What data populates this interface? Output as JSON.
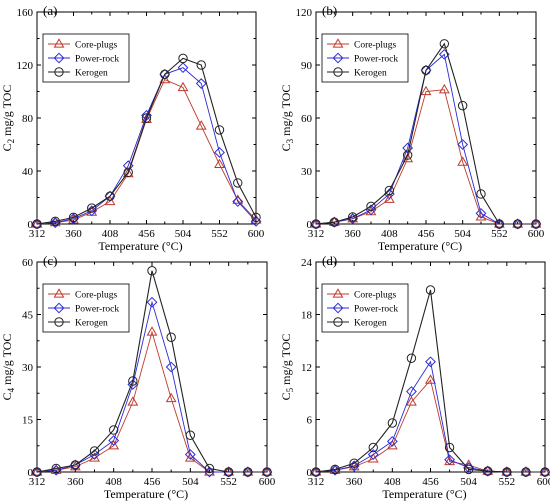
{
  "chart_data": [
    {
      "type": "line",
      "panel_label": "(a)",
      "ylabel_sym": "C",
      "ylabel_sub": "2",
      "ylabel_unit": " mg/g TOC",
      "xlabel": "Temperature (°C)",
      "xlim": [
        312,
        600
      ],
      "ylim": [
        0,
        160
      ],
      "xticks": [
        312,
        360,
        408,
        456,
        504,
        552,
        600
      ],
      "yticks": [
        0,
        40,
        80,
        120,
        160
      ],
      "legend_position": "top-left",
      "series": [
        {
          "name": "Core-plugs",
          "color": "#c0392b",
          "marker": "triangle",
          "x": [
            312,
            336,
            360,
            384,
            408,
            432,
            456,
            480,
            504,
            528,
            552,
            576,
            600
          ],
          "y": [
            0,
            1,
            3,
            9,
            17,
            38,
            79,
            109,
            103,
            74,
            45,
            18,
            3
          ]
        },
        {
          "name": "Power-rock",
          "color": "#2b2bd6",
          "marker": "diamond",
          "x": [
            312,
            336,
            360,
            384,
            408,
            432,
            456,
            480,
            504,
            528,
            552,
            576,
            600
          ],
          "y": [
            0,
            1,
            4,
            10,
            21,
            44,
            82,
            113,
            118,
            106,
            54,
            17,
            2
          ]
        },
        {
          "name": "Kerogen",
          "color": "#222222",
          "marker": "circle",
          "x": [
            312,
            336,
            360,
            384,
            408,
            432,
            456,
            480,
            504,
            528,
            552,
            576,
            600
          ],
          "y": [
            0,
            2,
            5,
            12,
            21,
            39,
            80,
            113,
            125,
            120,
            71,
            31,
            5
          ]
        }
      ]
    },
    {
      "type": "line",
      "panel_label": "(b)",
      "ylabel_sym": "C",
      "ylabel_sub": "3",
      "ylabel_unit": " mg/g TOC",
      "xlabel": "Temperature (°C)",
      "xlim": [
        312,
        600
      ],
      "ylim": [
        0,
        120
      ],
      "xticks": [
        312,
        360,
        408,
        456,
        504,
        552,
        600
      ],
      "yticks": [
        0,
        30,
        60,
        90,
        120
      ],
      "legend_position": "top-left",
      "series": [
        {
          "name": "Core-plugs",
          "color": "#c0392b",
          "marker": "triangle",
          "x": [
            312,
            336,
            360,
            384,
            408,
            432,
            456,
            480,
            504,
            528,
            552,
            576,
            600
          ],
          "y": [
            0,
            1,
            3,
            7,
            14,
            37,
            75,
            76,
            35,
            4,
            0,
            0,
            0
          ]
        },
        {
          "name": "Power-rock",
          "color": "#2b2bd6",
          "marker": "diamond",
          "x": [
            312,
            336,
            360,
            384,
            408,
            432,
            456,
            480,
            504,
            528,
            552,
            576,
            600
          ],
          "y": [
            0,
            1,
            3,
            8,
            17,
            43,
            87,
            96,
            45,
            6,
            0,
            0,
            0
          ]
        },
        {
          "name": "Kerogen",
          "color": "#222222",
          "marker": "circle",
          "x": [
            312,
            336,
            360,
            384,
            408,
            432,
            456,
            480,
            504,
            528,
            552,
            576,
            600
          ],
          "y": [
            0,
            1,
            4,
            10,
            19,
            39,
            87,
            102,
            67,
            17,
            0,
            0,
            0
          ]
        }
      ]
    },
    {
      "type": "line",
      "panel_label": "(c)",
      "ylabel_sym": "C",
      "ylabel_sub": "4",
      "ylabel_unit": " mg/g TOC",
      "xlabel": "Temperature (°C)",
      "xlim": [
        312,
        600
      ],
      "ylim": [
        0,
        60
      ],
      "xticks": [
        312,
        360,
        408,
        456,
        504,
        552,
        600
      ],
      "yticks": [
        0,
        15,
        30,
        45,
        60
      ],
      "legend_position": "top-left",
      "series": [
        {
          "name": "Core-plugs",
          "color": "#c0392b",
          "marker": "triangle",
          "x": [
            312,
            336,
            360,
            384,
            408,
            432,
            456,
            480,
            504,
            528,
            552,
            576,
            600
          ],
          "y": [
            0,
            0.5,
            1.5,
            4,
            7.5,
            20,
            40,
            21,
            4,
            0,
            0,
            0,
            0
          ]
        },
        {
          "name": "Power-rock",
          "color": "#2b2bd6",
          "marker": "diamond",
          "x": [
            312,
            336,
            360,
            384,
            408,
            432,
            456,
            480,
            504,
            528,
            552,
            576,
            600
          ],
          "y": [
            0,
            0.5,
            2,
            5,
            9,
            25,
            48.5,
            30,
            5,
            0,
            0,
            0,
            0
          ]
        },
        {
          "name": "Kerogen",
          "color": "#222222",
          "marker": "circle",
          "x": [
            312,
            336,
            360,
            384,
            408,
            432,
            456,
            480,
            504,
            528,
            552,
            576,
            600
          ],
          "y": [
            0,
            1,
            2,
            6,
            12,
            26,
            57.5,
            38.5,
            10.5,
            1,
            0,
            0,
            0
          ]
        }
      ]
    },
    {
      "type": "line",
      "panel_label": "(d)",
      "ylabel_sym": "C",
      "ylabel_sub": "5",
      "ylabel_unit": " mg/g TOC",
      "xlabel": "Temperature (°C)",
      "xlim": [
        312,
        600
      ],
      "ylim": [
        0,
        24
      ],
      "xticks": [
        312,
        360,
        408,
        456,
        504,
        552,
        600
      ],
      "yticks": [
        0,
        6,
        12,
        18,
        24
      ],
      "legend_position": "top-left",
      "series": [
        {
          "name": "Core-plugs",
          "color": "#c0392b",
          "marker": "triangle",
          "x": [
            312,
            336,
            360,
            384,
            408,
            432,
            456,
            480,
            504,
            528,
            552,
            576,
            600
          ],
          "y": [
            0,
            0.2,
            0.6,
            1.5,
            3,
            8,
            10.5,
            1.2,
            0.8,
            0.1,
            0,
            0,
            0
          ]
        },
        {
          "name": "Power-rock",
          "color": "#2b2bd6",
          "marker": "diamond",
          "x": [
            312,
            336,
            360,
            384,
            408,
            432,
            456,
            480,
            504,
            528,
            552,
            576,
            600
          ],
          "y": [
            0,
            0.2,
            0.7,
            2,
            3.5,
            9.2,
            12.6,
            1.4,
            0.5,
            0.1,
            0,
            0,
            0
          ]
        },
        {
          "name": "Kerogen",
          "color": "#222222",
          "marker": "circle",
          "x": [
            312,
            336,
            360,
            384,
            408,
            432,
            456,
            480,
            504,
            528,
            552,
            576,
            600
          ],
          "y": [
            0,
            0.3,
            1,
            2.8,
            5.6,
            13,
            20.8,
            2.8,
            0.3,
            0.1,
            0,
            0,
            0
          ]
        }
      ]
    }
  ]
}
